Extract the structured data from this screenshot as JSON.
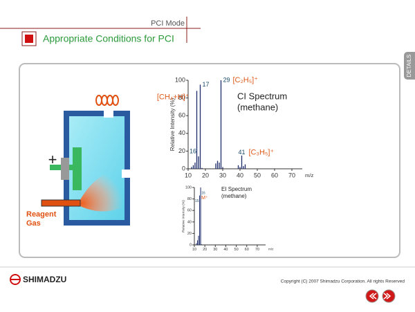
{
  "header": {
    "mode": "PCI Mode",
    "title": "Appropriate Conditions for PCI"
  },
  "side_tab": "DETAILS",
  "diagram": {
    "plus_sign": "+",
    "reagent_label": [
      "Reagent",
      "Gas"
    ]
  },
  "chart_data": [
    {
      "type": "bar",
      "title": "CI Spectrum",
      "subtitle": "(methane)",
      "x_label": "m/z",
      "y_label": "Relative Intensity (%)",
      "x": [
        12,
        13,
        14,
        15,
        16,
        17,
        18,
        26,
        27,
        28,
        29,
        30,
        39,
        40,
        41,
        42,
        43
      ],
      "values": [
        2,
        4,
        7,
        88,
        14,
        95,
        1,
        6,
        9,
        7,
        100,
        2,
        4,
        2,
        15,
        3,
        5
      ],
      "color": "#1a2a6a",
      "xlim": [
        10,
        76
      ],
      "ylim": [
        0,
        100
      ],
      "xticks": [
        10,
        20,
        30,
        40,
        50,
        60,
        70
      ],
      "yticks": [
        0,
        20,
        40,
        60,
        80,
        100
      ],
      "annotations": [
        {
          "label": "17",
          "x": 17
        },
        {
          "label": "29",
          "x": 29
        },
        {
          "label": "[C₂H₅]⁺",
          "x": 29
        },
        {
          "label": "[CH₄+H]⁺",
          "x": 17
        },
        {
          "label": "16",
          "x": 16
        },
        {
          "label": "41",
          "x": 41
        },
        {
          "label": "[C₃H₅]⁺",
          "x": 41
        }
      ]
    },
    {
      "type": "bar",
      "title": "EI Spectrum",
      "subtitle": "(methane)",
      "x_label": "m/z",
      "y_label": "Relative Intensity (%)",
      "x": [
        12,
        13,
        14,
        15,
        16,
        17
      ],
      "values": [
        3,
        8,
        16,
        86,
        100,
        1
      ],
      "color": "#1a2a6a",
      "xlim": [
        10,
        78
      ],
      "ylim": [
        0,
        100
      ],
      "xticks": [
        10,
        20,
        30,
        40,
        50,
        60,
        70
      ],
      "yticks": [
        0,
        20,
        40,
        60,
        80,
        100
      ],
      "annotations": [
        {
          "label": "15",
          "x": 15
        },
        {
          "label": "16",
          "x": 16
        },
        {
          "label": "M⁺",
          "x": 16
        }
      ]
    }
  ],
  "footer": {
    "logo": "SHIMADZU",
    "copyright": "Copyright (C) 2007 Shimadzu Corporation. All rights  Reserved"
  }
}
